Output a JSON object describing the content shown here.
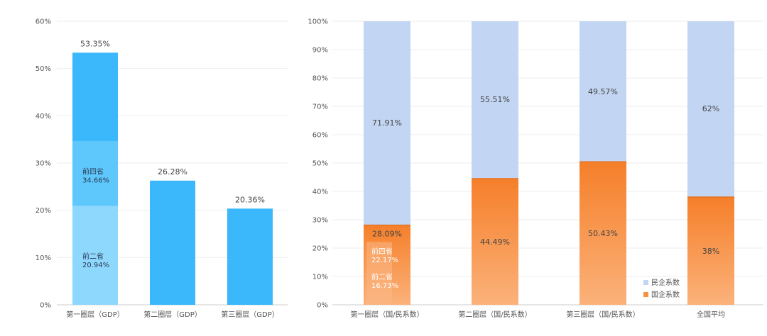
{
  "chart_data": [
    {
      "type": "bar",
      "title": "",
      "xlabel": "",
      "ylabel": "",
      "ylim": [
        0,
        60
      ],
      "yticks": [
        "0%",
        "10%",
        "20%",
        "30%",
        "40%",
        "50%",
        "60%"
      ],
      "grid": true,
      "categories": [
        "第一圈层（GDP）",
        "第二圈层（GDP）",
        "第三圈层（GDP）"
      ],
      "values": [
        53.35,
        26.28,
        20.36
      ],
      "value_labels": [
        "53.35%",
        "26.28%",
        "20.36%"
      ],
      "breakdown": [
        {
          "category": "第一圈层（GDP）",
          "name": "前二省",
          "value": 20.94,
          "label": "20.94%"
        },
        {
          "category": "第一圈层（GDP）",
          "name": "前四省",
          "value": 34.66,
          "label": "34.66%"
        }
      ],
      "colors": {
        "bar": "#3bb8fb",
        "top4": "#5ec8fc",
        "top2": "#8fd8fd"
      }
    },
    {
      "type": "bar",
      "stacked": true,
      "title": "",
      "xlabel": "",
      "ylabel": "",
      "ylim": [
        0,
        100
      ],
      "yticks": [
        "0%",
        "10%",
        "20%",
        "30%",
        "40%",
        "50%",
        "60%",
        "70%",
        "80%",
        "90%",
        "100%"
      ],
      "grid": true,
      "legend_position": "bottom-right",
      "categories": [
        "第一圈层（国/民系数）",
        "第二圈层（国/民系数）",
        "第三圈层（国/民系数）",
        "全国平均"
      ],
      "series": [
        {
          "name": "国企系数",
          "values": [
            28.09,
            44.49,
            50.43,
            38
          ],
          "labels": [
            "28.09%",
            "44.49%",
            "50.43%",
            "38%"
          ],
          "color": "#f7913f"
        },
        {
          "name": "民企系数",
          "values": [
            71.91,
            55.51,
            49.57,
            62
          ],
          "labels": [
            "71.91%",
            "55.51%",
            "49.57%",
            "62%"
          ],
          "color": "#c2d5f2"
        }
      ],
      "breakdown": [
        {
          "category": "第一圈层（国/民系数）",
          "name": "前四省",
          "value": 22.17,
          "label": "22.17%"
        },
        {
          "category": "第一圈层（国/民系数）",
          "name": "前二省",
          "value": 16.73,
          "label": "16.73%"
        }
      ]
    }
  ]
}
